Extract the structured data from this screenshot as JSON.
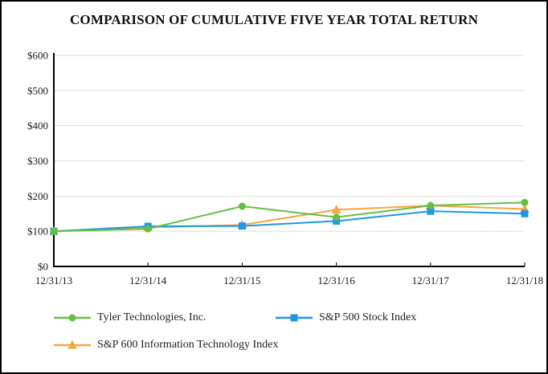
{
  "title": "COMPARISON OF CUMULATIVE FIVE YEAR TOTAL RETURN",
  "chart_data": {
    "type": "line",
    "categories": [
      "12/31/13",
      "12/31/14",
      "12/31/15",
      "12/31/16",
      "12/31/17",
      "12/31/18"
    ],
    "series": [
      {
        "name": "Tyler Technologies, Inc.",
        "marker": "circle",
        "color": "#66bf43",
        "values": [
          100,
          107,
          171,
          140,
          173,
          182
        ]
      },
      {
        "name": "S&P 500 Stock Index",
        "marker": "square",
        "color": "#1e97e8",
        "values": [
          100,
          114,
          115,
          129,
          157,
          150
        ]
      },
      {
        "name": "S&P 600 Information Technology Index",
        "marker": "triangle",
        "color": "#f9a53d",
        "values": [
          100,
          111,
          118,
          161,
          173,
          163
        ]
      }
    ],
    "xlabel": "",
    "ylabel": "",
    "ylim": [
      0,
      600
    ],
    "y_ticks": [
      0,
      100,
      200,
      300,
      400,
      500,
      600
    ],
    "y_tick_labels": [
      "$0",
      "$100",
      "$200",
      "$300",
      "$400",
      "$500",
      "$600"
    ],
    "grid": "horizontal",
    "legend_position": "bottom"
  },
  "colors": {
    "grid": "#dcdcdc",
    "axis": "#000000",
    "text": "#1a1a1a",
    "background": "#ffffff"
  }
}
